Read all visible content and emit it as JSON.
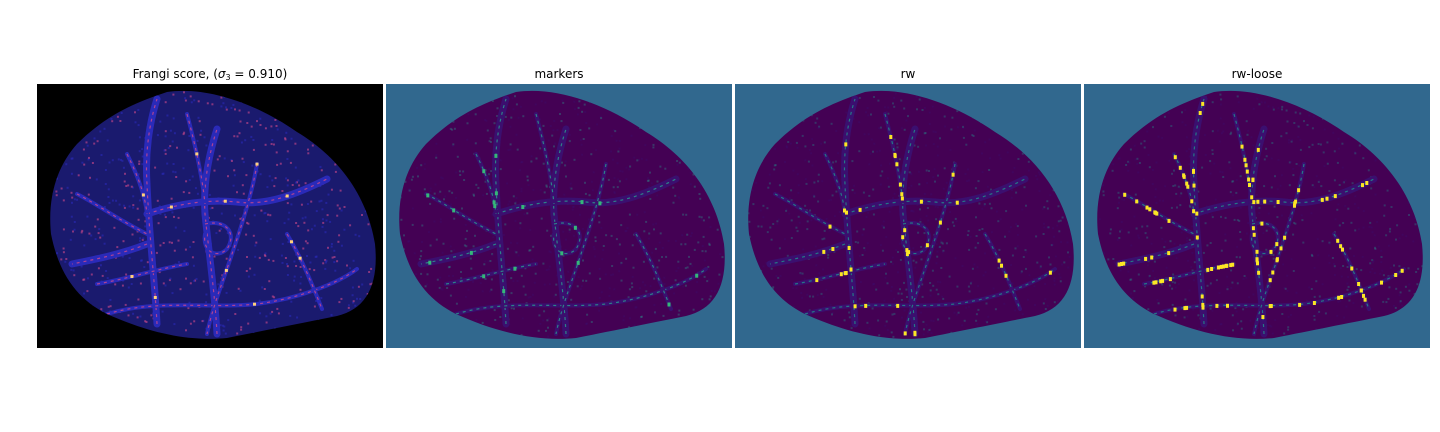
{
  "figure": {
    "background": "#ffffff",
    "panels": [
      {
        "id": "frangi",
        "title_prefix": "Frangi score, (",
        "sigma_symbol": "σ",
        "sigma_subscript": "3",
        "title_suffix": " = 0.910)",
        "image_description_colors": {
          "background": "#000000",
          "tissue": "#1a1a6e",
          "vessel": "#2a2ab8",
          "highlight": "#d04a8a",
          "hot": "#ffd27a"
        }
      },
      {
        "id": "markers",
        "title": "markers",
        "image_description_colors": {
          "background": "#31688e",
          "tissue": "#440154",
          "vessel": "#3b0f6f",
          "highlight": "#2a9d8f",
          "hot": "#35b779"
        }
      },
      {
        "id": "rw",
        "title": "rw",
        "image_description_colors": {
          "background": "#31688e",
          "tissue": "#440154",
          "vessel": "#3b0f6f",
          "highlight": "#21918c",
          "hot": "#fde725"
        }
      },
      {
        "id": "rw-loose",
        "title": "rw-loose",
        "image_description_colors": {
          "background": "#31688e",
          "tissue": "#440154",
          "vessel": "#3b0f6f",
          "highlight": "#21918c",
          "hot": "#fde725"
        }
      }
    ]
  }
}
